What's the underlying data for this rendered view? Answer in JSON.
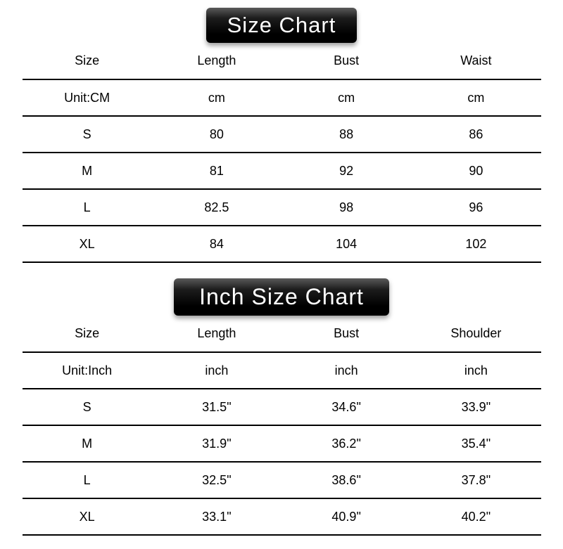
{
  "chart_data": [
    {
      "type": "table",
      "title": "Size Chart",
      "unit": "CM",
      "columns": [
        "Size",
        "Length",
        "Bust",
        "Waist"
      ],
      "rows": [
        [
          "Unit:CM",
          "cm",
          "cm",
          "cm"
        ],
        [
          "S",
          "80",
          "88",
          "86"
        ],
        [
          "M",
          "81",
          "92",
          "90"
        ],
        [
          "L",
          "82.5",
          "98",
          "96"
        ],
        [
          "XL",
          "84",
          "104",
          "102"
        ]
      ]
    },
    {
      "type": "table",
      "title": "Inch Size Chart",
      "unit": "Inch",
      "columns": [
        "Size",
        "Length",
        "Bust",
        "Shoulder"
      ],
      "rows": [
        [
          "Unit:Inch",
          "inch",
          "inch",
          "inch"
        ],
        [
          "S",
          "31.5\"",
          "34.6\"",
          "33.9\""
        ],
        [
          "M",
          "31.9\"",
          "36.2\"",
          "35.4\""
        ],
        [
          "L",
          "32.5\"",
          "38.6\"",
          "37.8\""
        ],
        [
          "XL",
          "33.1\"",
          "40.9\"",
          "40.2\""
        ]
      ]
    }
  ],
  "colors": {
    "background": "#ffffff",
    "title_bg": "#000000",
    "title_text": "#ffffff",
    "rule": "#000000",
    "text": "#000000"
  }
}
